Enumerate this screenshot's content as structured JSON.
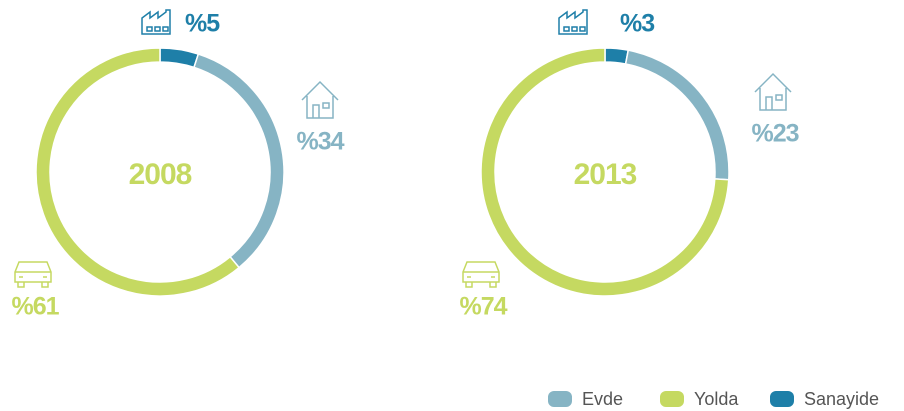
{
  "chart_data": [
    {
      "type": "pie",
      "title": "2008",
      "categories": [
        "Sanayide",
        "Evde",
        "Yolda"
      ],
      "values": [
        5,
        34,
        61
      ],
      "value_labels": [
        "%5",
        "%34",
        "%61"
      ],
      "colors": [
        "#1e7fa8",
        "#86b4c4",
        "#c5d961"
      ]
    },
    {
      "type": "pie",
      "title": "2013",
      "categories": [
        "Sanayide",
        "Evde",
        "Yolda"
      ],
      "values": [
        3,
        23,
        74
      ],
      "value_labels": [
        "%3",
        "%23",
        "%74"
      ],
      "colors": [
        "#1e7fa8",
        "#86b4c4",
        "#c5d961"
      ]
    }
  ]
}
